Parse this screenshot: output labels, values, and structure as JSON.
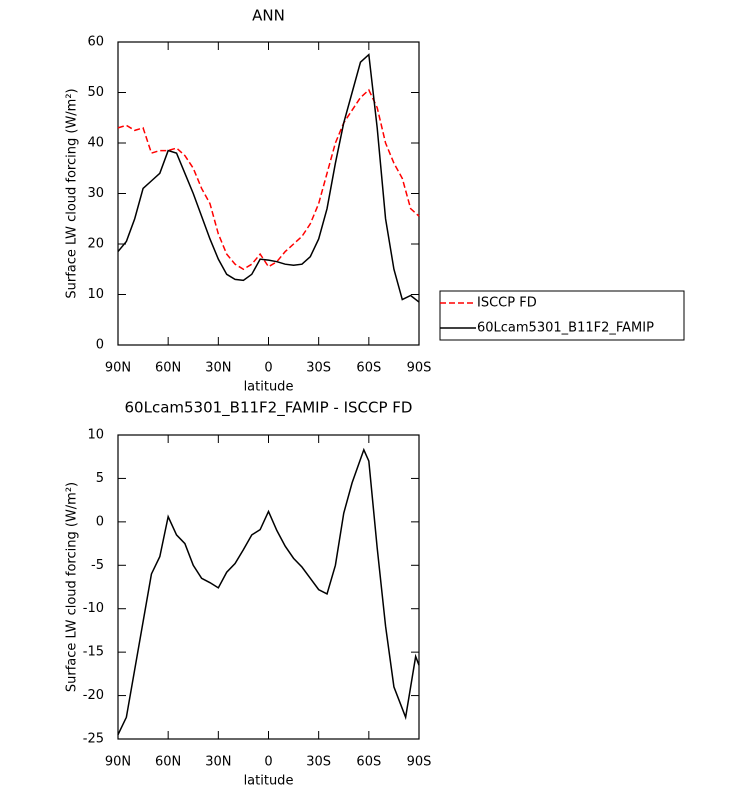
{
  "chart_data": [
    {
      "type": "line",
      "title": "ANN",
      "xlabel": "latitude",
      "ylabel": "Surface LW cloud forcing (W/m²)",
      "x": [
        90,
        85,
        80,
        75,
        70,
        65,
        60,
        55,
        50,
        45,
        40,
        35,
        30,
        25,
        20,
        15,
        10,
        5,
        0,
        -5,
        -10,
        -15,
        -20,
        -25,
        -30,
        -35,
        -40,
        -45,
        -50,
        -55,
        -60,
        -65,
        -70,
        -75,
        -80,
        -85,
        -90
      ],
      "series": [
        {
          "name": "ISCCP FD",
          "color": "#ff0000",
          "linestyle": "dashed",
          "values": [
            43,
            43.5,
            42.5,
            43,
            38,
            38.5,
            38.5,
            39,
            37.5,
            35,
            31,
            28,
            22,
            18,
            16,
            15,
            16,
            18,
            15.5,
            16.5,
            18.5,
            20,
            21.5,
            24,
            28,
            34,
            40,
            44,
            46.5,
            49,
            50.5,
            47,
            40,
            36,
            33,
            27,
            25.5
          ]
        },
        {
          "name": "60Lcam5301_B11F2_FAMIP",
          "color": "#000000",
          "linestyle": "solid",
          "values": [
            18.5,
            20.5,
            25,
            31,
            32.5,
            34,
            38.5,
            38,
            34,
            30,
            25.5,
            21,
            17,
            14,
            13,
            12.8,
            14,
            17,
            16.8,
            16.5,
            16,
            15.8,
            16,
            17.5,
            21,
            27,
            36,
            44,
            50,
            56,
            57.5,
            43,
            25,
            15,
            9,
            9.8,
            8.5
          ]
        }
      ],
      "xlim": [
        90,
        -90
      ],
      "xticks": [
        {
          "value": 90,
          "label": "90N"
        },
        {
          "value": 60,
          "label": "60N"
        },
        {
          "value": 30,
          "label": "30N"
        },
        0,
        {
          "value": -30,
          "label": "30S"
        },
        {
          "value": -60,
          "label": "60S"
        },
        {
          "value": -90,
          "label": "90S"
        }
      ],
      "ylim": [
        0,
        60
      ],
      "yticks": [
        0,
        10,
        20,
        30,
        40,
        50,
        60
      ],
      "legend": "right"
    },
    {
      "type": "line",
      "title": "60Lcam5301_B11F2_FAMIP - ISCCP FD",
      "xlabel": "latitude",
      "ylabel": "Surface LW cloud forcing (W/m²)",
      "x": [
        90,
        85,
        80,
        75,
        70,
        65,
        60,
        55,
        50,
        45,
        40,
        35,
        30,
        25,
        20,
        15,
        10,
        5,
        0,
        -5,
        -10,
        -15,
        -20,
        -25,
        -30,
        -35,
        -40,
        -45,
        -50,
        -57,
        -60,
        -65,
        -70,
        -75,
        -82,
        -85,
        -88,
        -90
      ],
      "series": [
        {
          "color": "#000000",
          "linestyle": "solid",
          "values": [
            -24.5,
            -22.5,
            -17,
            -11.5,
            -6,
            -4,
            0.6,
            -1.5,
            -2.5,
            -5,
            -6.5,
            -7,
            -7.6,
            -5.8,
            -4.8,
            -3.2,
            -1.5,
            -0.9,
            1.2,
            -1,
            -2.8,
            -4.2,
            -5.2,
            -6.5,
            -7.8,
            -8.3,
            -5,
            1,
            4.5,
            8.3,
            7,
            -3,
            -12,
            -19,
            -22.5,
            -19,
            -15.5,
            -16.5
          ]
        }
      ],
      "xlim": [
        90,
        -90
      ],
      "xticks": [
        {
          "value": 90,
          "label": "90N"
        },
        {
          "value": 60,
          "label": "60N"
        },
        {
          "value": 30,
          "label": "30N"
        },
        0,
        {
          "value": -30,
          "label": "30S"
        },
        {
          "value": -60,
          "label": "60S"
        },
        {
          "value": -90,
          "label": "90S"
        }
      ],
      "ylim": [
        -25,
        10
      ],
      "yticks": [
        -25,
        -20,
        -15,
        -10,
        -5,
        0,
        5,
        10
      ]
    }
  ]
}
